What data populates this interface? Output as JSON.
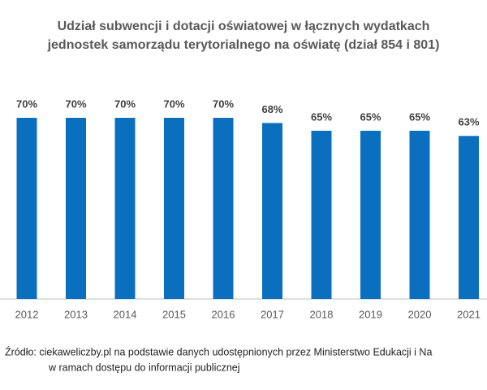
{
  "chart_data": {
    "type": "bar",
    "title": [
      "Udział subwencji i dotacji oświatowej w łącznych wydatkach",
      "jednostek samorządu terytorialnego na oświatę (dział 854 i 801)"
    ],
    "categories": [
      "2012",
      "2013",
      "2014",
      "2015",
      "2016",
      "2017",
      "2018",
      "2019",
      "2020",
      "2021"
    ],
    "values": [
      70,
      70,
      70,
      70,
      70,
      68,
      65,
      65,
      65,
      63
    ],
    "value_labels": [
      "70%",
      "70%",
      "70%",
      "70%",
      "70%",
      "68%",
      "65%",
      "65%",
      "65%",
      "63%"
    ],
    "color": "#0b6fc0",
    "source": [
      "Źródło: ciekaweliczby.pl na podstawie danych udostępnionych przez Ministerstwo Edukacji i Na",
      "w ramach dostępu do informacji publicznej"
    ]
  }
}
